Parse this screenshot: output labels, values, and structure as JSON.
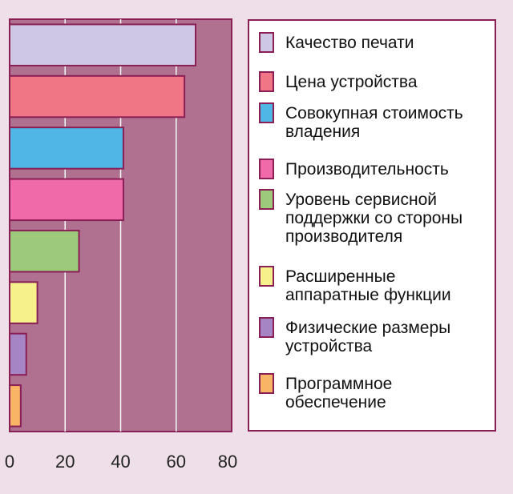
{
  "chart_data": {
    "type": "bar",
    "orientation": "horizontal",
    "categories": [
      "Качество печати",
      "Цена устройства",
      "Совокупная стоимость\nвладения",
      "Производительность",
      "Уровень сервисной\nподдержки со стороны\nпроизводителя",
      "Расширенные\nаппаратные функции",
      "Физические размеры\nустройства",
      "Программное\nобеспечение"
    ],
    "values": [
      67,
      63,
      41,
      41,
      25,
      10,
      6,
      4
    ],
    "colors": [
      "#cfc8e4",
      "#f07585",
      "#4fb6e6",
      "#f06aaa",
      "#9cc97a",
      "#f6f18a",
      "#a585c4",
      "#f9b566"
    ],
    "xlim": [
      0,
      80
    ],
    "xticks": [
      "0",
      "20",
      "40",
      "60",
      "80"
    ],
    "grid": true,
    "legend_position": "right",
    "plot_background": "#b0708f",
    "border_color": "#8a1f55"
  }
}
